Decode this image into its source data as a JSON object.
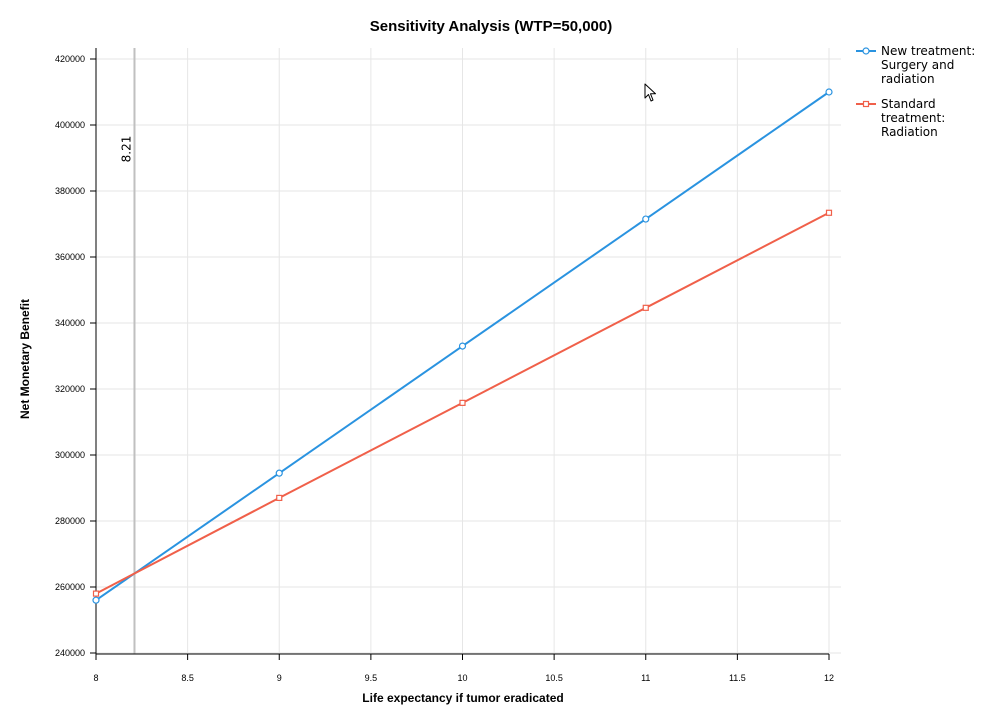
{
  "chart_data": {
    "type": "line",
    "title": "Sensitivity Analysis (WTP=50,000)",
    "xlabel": "Life expectancy if tumor eradicated",
    "ylabel": "Net Monetary Benefit",
    "xlim": [
      8,
      12
    ],
    "ylim": [
      240000,
      420000
    ],
    "xticks": [
      8,
      8.5,
      9,
      9.5,
      10,
      10.5,
      11,
      11.5,
      12
    ],
    "yticks": [
      240000,
      260000,
      280000,
      300000,
      320000,
      340000,
      360000,
      380000,
      400000,
      420000
    ],
    "grid": true,
    "legend_position": "top-right",
    "reference_line": {
      "x": 8.21,
      "label": "8.21",
      "color": "#c0c0c0"
    },
    "series": [
      {
        "name": "New treatment: Surgery and radiation",
        "legend_lines": [
          "New treatment:",
          "Surgery and",
          "radiation"
        ],
        "color": "#2a93e0",
        "marker": "circle",
        "x": [
          8,
          9,
          10,
          11,
          12
        ],
        "y": [
          256000,
          294500,
          333000,
          371500,
          410000
        ]
      },
      {
        "name": "Standard treatment: Radiation",
        "legend_lines": [
          "Standard",
          "treatment:",
          "Radiation"
        ],
        "color": "#f0604a",
        "marker": "square",
        "x": [
          8,
          9,
          10,
          11,
          12
        ],
        "y": [
          258000,
          287000,
          315800,
          344600,
          373400
        ]
      }
    ]
  }
}
